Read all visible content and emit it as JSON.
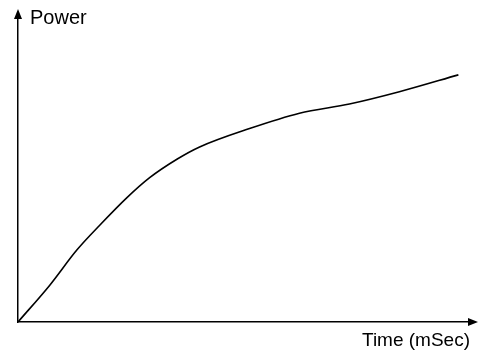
{
  "chart_data": {
    "type": "line",
    "y_label": "Power",
    "x_label": "Time (mSec)",
    "x": [
      0,
      7,
      13,
      18,
      24,
      29,
      35,
      40,
      51,
      62,
      73,
      84,
      97
    ],
    "values": [
      0,
      12,
      23.5,
      31.5,
      40.5,
      47,
      53,
      57,
      63,
      68,
      71,
      75,
      80.5
    ],
    "color": "#000000",
    "xlim": [
      0,
      100
    ],
    "ylim": [
      0,
      100
    ],
    "grid": false,
    "tick_labels": false
  }
}
